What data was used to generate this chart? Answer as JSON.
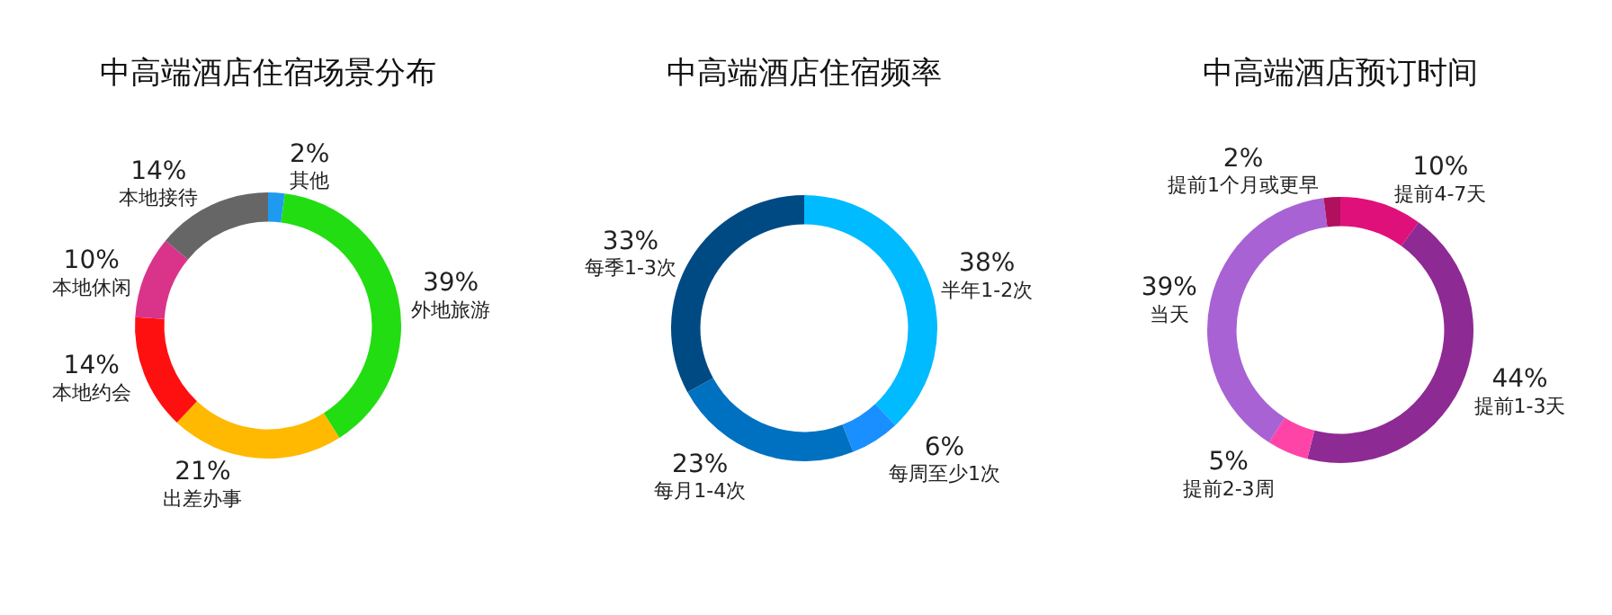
{
  "chart_data": [
    {
      "type": "donut",
      "title": "中高端酒店住宿场景分布",
      "categories": [
        "其他",
        "外地旅游",
        "出差办事",
        "本地约会",
        "本地休闲",
        "本地接待"
      ],
      "values": [
        2,
        39,
        21,
        14,
        10,
        14
      ],
      "value_labels": [
        "2%",
        "39%",
        "21%",
        "14%",
        "10%",
        "14%"
      ],
      "colors": [
        "#1e9bf0",
        "#22dd11",
        "#ffb900",
        "#ff1010",
        "#d9348a",
        "#666666"
      ],
      "legend": false
    },
    {
      "type": "donut",
      "title": "中高端酒店住宿频率",
      "categories": [
        "半年1-2次",
        "每周至少1次",
        "每月1-4次",
        "每季1-3次"
      ],
      "values": [
        38,
        6,
        23,
        33
      ],
      "value_labels": [
        "38%",
        "6%",
        "23%",
        "33%"
      ],
      "colors": [
        "#00bbff",
        "#1a8fff",
        "#0071c1",
        "#004a84"
      ],
      "legend": false
    },
    {
      "type": "donut",
      "title": "中高端酒店预订时间",
      "categories": [
        "提前4-7天",
        "提前1-3天",
        "提前2-3周",
        "当天",
        "提前1个月或更早"
      ],
      "values": [
        10,
        44,
        5,
        39,
        2
      ],
      "value_labels": [
        "10%",
        "44%",
        "5%",
        "39%",
        "2%"
      ],
      "colors": [
        "#e0107a",
        "#8e2a94",
        "#ff44a8",
        "#a862d4",
        "#b0105e"
      ],
      "legend": false
    }
  ]
}
